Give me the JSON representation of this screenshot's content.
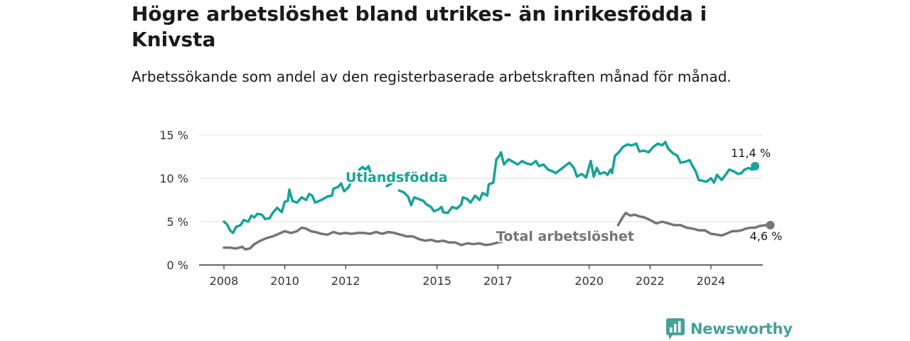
{
  "title": "Högre arbetslöshet bland utrikes- än inrikesfödda i Knivsta",
  "subtitle": "Arbetssökande som andel av den registerbaserade arbetskraften månad för månad.",
  "brand": {
    "name": "Newsworthy",
    "icon": "newsworthy-logo-icon"
  },
  "colors": {
    "foreign_born": "#17a398",
    "total": "#757575",
    "grid": "#dddddd",
    "axis": "#333333",
    "brand": "#45a29a"
  },
  "chart_data": {
    "type": "line",
    "title": "",
    "xlabel": "",
    "ylabel": "",
    "xlim": [
      2007.7,
      2025.1
    ],
    "ylim": [
      0,
      15
    ],
    "y_ticks": [
      0,
      5,
      10,
      15
    ],
    "y_tick_labels": [
      "0 %",
      "5 %",
      "10 %",
      "15 %"
    ],
    "x_ticks": [
      2008,
      2010,
      2012,
      2015,
      2017,
      2020,
      2022,
      2024
    ],
    "x_tick_labels": [
      "2008",
      "2010",
      "2012",
      "2015",
      "2017",
      "2020",
      "2022",
      "2024"
    ],
    "grid": "horizontal",
    "legend": "inline labels",
    "series": [
      {
        "name": "Utlandsfödda",
        "color": "#17a398",
        "end_label": "11,4 %",
        "segments": [
          [
            [
              2008.0,
              5.0
            ],
            [
              2008.1,
              4.7
            ],
            [
              2008.2,
              4.0
            ],
            [
              2008.3,
              3.7
            ],
            [
              2008.4,
              4.4
            ],
            [
              2008.55,
              4.6
            ],
            [
              2008.65,
              5.2
            ],
            [
              2008.8,
              5.0
            ],
            [
              2008.9,
              5.7
            ],
            [
              2009.0,
              5.5
            ],
            [
              2009.1,
              5.9
            ],
            [
              2009.25,
              5.8
            ],
            [
              2009.35,
              5.3
            ],
            [
              2009.5,
              5.4
            ],
            [
              2009.6,
              6.0
            ],
            [
              2009.75,
              6.6
            ],
            [
              2009.9,
              6.1
            ],
            [
              2010.0,
              7.3
            ],
            [
              2010.1,
              7.4
            ],
            [
              2010.15,
              8.7
            ],
            [
              2010.25,
              7.4
            ],
            [
              2010.4,
              7.2
            ],
            [
              2010.55,
              7.8
            ],
            [
              2010.7,
              7.5
            ],
            [
              2010.8,
              8.2
            ],
            [
              2010.9,
              8.0
            ],
            [
              2011.0,
              7.2
            ],
            [
              2011.2,
              7.5
            ],
            [
              2011.4,
              7.9
            ],
            [
              2011.55,
              8.0
            ],
            [
              2011.6,
              8.8
            ],
            [
              2011.75,
              9.0
            ],
            [
              2011.85,
              9.4
            ],
            [
              2011.95,
              8.5
            ],
            [
              2012.1,
              9.0
            ],
            [
              2012.2,
              9.8
            ]
          ],
          [
            [
              2012.45,
              11.0
            ],
            [
              2012.55,
              11.3
            ],
            [
              2012.65,
              11.0
            ],
            [
              2012.75,
              11.4
            ],
            [
              2012.8,
              10.8
            ]
          ],
          [
            [
              2013.35,
              9.1
            ],
            [
              2013.5,
              9.4
            ]
          ],
          [
            [
              2013.75,
              8.6
            ],
            [
              2013.9,
              8.4
            ],
            [
              2014.05,
              7.9
            ],
            [
              2014.15,
              6.9
            ],
            [
              2014.25,
              7.8
            ],
            [
              2014.4,
              7.6
            ],
            [
              2014.55,
              7.4
            ],
            [
              2014.65,
              7.0
            ],
            [
              2014.8,
              6.7
            ],
            [
              2014.9,
              6.2
            ],
            [
              2015.05,
              6.4
            ],
            [
              2015.15,
              6.7
            ],
            [
              2015.2,
              6.1
            ],
            [
              2015.35,
              6.0
            ],
            [
              2015.5,
              6.7
            ],
            [
              2015.65,
              6.5
            ],
            [
              2015.8,
              7.0
            ],
            [
              2015.85,
              7.8
            ],
            [
              2016.0,
              7.6
            ],
            [
              2016.1,
              7.2
            ],
            [
              2016.25,
              8.0
            ],
            [
              2016.4,
              7.5
            ],
            [
              2016.5,
              8.3
            ],
            [
              2016.65,
              8.0
            ],
            [
              2016.7,
              9.3
            ],
            [
              2016.85,
              9.5
            ],
            [
              2016.95,
              12.2
            ],
            [
              2017.05,
              12.6
            ],
            [
              2017.1,
              13.0
            ],
            [
              2017.2,
              11.6
            ],
            [
              2017.35,
              12.2
            ],
            [
              2017.5,
              11.9
            ],
            [
              2017.65,
              11.6
            ],
            [
              2017.8,
              12.0
            ],
            [
              2017.95,
              11.7
            ],
            [
              2018.1,
              11.6
            ],
            [
              2018.25,
              12.0
            ],
            [
              2018.35,
              11.4
            ],
            [
              2018.5,
              11.6
            ],
            [
              2018.65,
              11.0
            ],
            [
              2018.8,
              10.8
            ],
            [
              2018.9,
              10.6
            ],
            [
              2019.05,
              11.0
            ],
            [
              2019.2,
              11.4
            ],
            [
              2019.35,
              11.8
            ],
            [
              2019.5,
              11.2
            ],
            [
              2019.6,
              10.2
            ],
            [
              2019.75,
              10.5
            ],
            [
              2019.9,
              10.1
            ],
            [
              2020.05,
              12.0
            ],
            [
              2020.15,
              10.2
            ],
            [
              2020.25,
              11.2
            ],
            [
              2020.35,
              10.5
            ],
            [
              2020.5,
              10.7
            ],
            [
              2020.6,
              10.4
            ],
            [
              2020.7,
              11.0
            ],
            [
              2020.75,
              10.6
            ],
            [
              2020.85,
              12.6
            ],
            [
              2021.0,
              13.1
            ],
            [
              2021.1,
              13.6
            ],
            [
              2021.25,
              13.9
            ],
            [
              2021.4,
              13.8
            ],
            [
              2021.55,
              14.0
            ],
            [
              2021.65,
              13.1
            ],
            [
              2021.8,
              13.2
            ],
            [
              2021.95,
              13.0
            ],
            [
              2022.1,
              13.6
            ],
            [
              2022.25,
              14.0
            ],
            [
              2022.4,
              13.8
            ],
            [
              2022.5,
              14.2
            ],
            [
              2022.6,
              13.4
            ],
            [
              2022.75,
              12.9
            ],
            [
              2022.9,
              12.6
            ],
            [
              2023.0,
              11.8
            ],
            [
              2023.15,
              11.9
            ],
            [
              2023.3,
              12.1
            ],
            [
              2023.4,
              11.4
            ],
            [
              2023.5,
              10.8
            ],
            [
              2023.6,
              9.8
            ],
            [
              2023.75,
              9.7
            ],
            [
              2023.85,
              9.6
            ],
            [
              2024.0,
              10.0
            ],
            [
              2024.1,
              9.5
            ],
            [
              2024.2,
              10.4
            ],
            [
              2024.35,
              9.8
            ],
            [
              2024.5,
              10.5
            ],
            [
              2024.6,
              11.0
            ],
            [
              2024.75,
              10.8
            ],
            [
              2024.9,
              10.5
            ],
            [
              2025.0,
              10.6
            ],
            [
              2025.1,
              11.0
            ],
            [
              2025.25,
              11.2
            ],
            [
              2025.35,
              11.0
            ],
            [
              2025.45,
              11.4
            ]
          ]
        ]
      },
      {
        "name": "Total arbetslöshet",
        "color": "#757575",
        "end_label": "4,6 %",
        "segments": [
          [
            [
              2008.0,
              2.0
            ],
            [
              2008.2,
              2.0
            ],
            [
              2008.4,
              1.9
            ],
            [
              2008.6,
              2.1
            ],
            [
              2008.7,
              1.8
            ],
            [
              2008.85,
              1.9
            ],
            [
              2009.0,
              2.4
            ],
            [
              2009.2,
              2.8
            ],
            [
              2009.4,
              3.1
            ],
            [
              2009.6,
              3.3
            ],
            [
              2009.8,
              3.6
            ],
            [
              2010.0,
              3.9
            ],
            [
              2010.2,
              3.7
            ],
            [
              2010.4,
              3.9
            ],
            [
              2010.55,
              4.3
            ],
            [
              2010.7,
              4.2
            ],
            [
              2010.85,
              3.9
            ],
            [
              2011.0,
              3.8
            ],
            [
              2011.2,
              3.6
            ],
            [
              2011.4,
              3.5
            ],
            [
              2011.6,
              3.8
            ],
            [
              2011.8,
              3.6
            ],
            [
              2012.0,
              3.7
            ],
            [
              2012.2,
              3.6
            ],
            [
              2012.4,
              3.7
            ],
            [
              2012.6,
              3.7
            ],
            [
              2012.8,
              3.6
            ],
            [
              2013.0,
              3.8
            ],
            [
              2013.2,
              3.6
            ],
            [
              2013.4,
              3.8
            ],
            [
              2013.6,
              3.7
            ],
            [
              2013.8,
              3.5
            ],
            [
              2014.0,
              3.3
            ],
            [
              2014.2,
              3.3
            ],
            [
              2014.4,
              3.0
            ],
            [
              2014.6,
              2.8
            ],
            [
              2014.8,
              2.9
            ],
            [
              2015.0,
              2.7
            ],
            [
              2015.2,
              2.8
            ],
            [
              2015.4,
              2.6
            ],
            [
              2015.6,
              2.6
            ],
            [
              2015.8,
              2.3
            ],
            [
              2016.0,
              2.5
            ],
            [
              2016.2,
              2.4
            ],
            [
              2016.4,
              2.5
            ],
            [
              2016.6,
              2.3
            ],
            [
              2016.8,
              2.4
            ],
            [
              2017.0,
              2.6
            ],
            [
              2017.15,
              2.7
            ]
          ],
          [
            [
              2017.25,
              3.1
            ],
            [
              2017.45,
              3.0
            ]
          ],
          [
            [
              2020.95,
              4.6
            ],
            [
              2021.1,
              5.5
            ],
            [
              2021.2,
              6.0
            ],
            [
              2021.35,
              5.7
            ],
            [
              2021.5,
              5.8
            ],
            [
              2021.65,
              5.6
            ],
            [
              2021.8,
              5.5
            ],
            [
              2022.0,
              5.2
            ],
            [
              2022.2,
              4.8
            ],
            [
              2022.4,
              5.0
            ],
            [
              2022.6,
              4.8
            ],
            [
              2022.8,
              4.6
            ],
            [
              2023.0,
              4.6
            ],
            [
              2023.2,
              4.3
            ],
            [
              2023.4,
              4.2
            ],
            [
              2023.6,
              4.0
            ],
            [
              2023.8,
              4.0
            ],
            [
              2024.0,
              3.6
            ],
            [
              2024.2,
              3.5
            ],
            [
              2024.35,
              3.4
            ],
            [
              2024.5,
              3.6
            ],
            [
              2024.7,
              3.9
            ],
            [
              2024.85,
              3.9
            ],
            [
              2025.0,
              4.0
            ],
            [
              2025.15,
              4.2
            ],
            [
              2025.3,
              4.3
            ],
            [
              2025.45,
              4.3
            ],
            [
              2025.6,
              4.5
            ],
            [
              2025.8,
              4.6
            ],
            [
              2025.95,
              4.6
            ]
          ]
        ]
      }
    ]
  }
}
